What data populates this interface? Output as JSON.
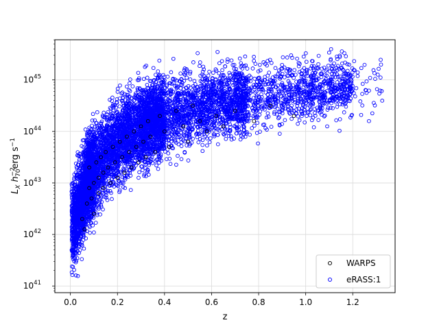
{
  "chart_data": {
    "type": "scatter",
    "title": "",
    "xlabel": "z",
    "ylabel_parts": {
      "main": "L",
      "sub1": "X",
      "h": "h",
      "hsub": "70",
      "hsup": "−2",
      "unit": "erg s",
      "unitsup": "−1"
    },
    "x_ticks": [
      "0.0",
      "0.2",
      "0.4",
      "0.6",
      "0.8",
      "1.0",
      "1.2"
    ],
    "x_tick_values": [
      0.0,
      0.2,
      0.4,
      0.6,
      0.8,
      1.0,
      1.2
    ],
    "y_ticks": [
      {
        "value": 41,
        "base": "10",
        "exp": "41"
      },
      {
        "value": 42,
        "base": "10",
        "exp": "42"
      },
      {
        "value": 43,
        "base": "10",
        "exp": "43"
      },
      {
        "value": 44,
        "base": "10",
        "exp": "44"
      },
      {
        "value": 45,
        "base": "10",
        "exp": "45"
      }
    ],
    "xlim": [
      -0.066,
      1.38
    ],
    "ylim_log10": [
      40.87,
      45.78
    ],
    "yscale": "log",
    "grid": true,
    "legend_position": "lower right",
    "series": [
      {
        "name": "WARPS",
        "marker": "open-circle",
        "color": "#000000",
        "points": [
          [
            0.05,
            42.3
          ],
          [
            0.06,
            42.1
          ],
          [
            0.07,
            42.6
          ],
          [
            0.08,
            42.9
          ],
          [
            0.08,
            43.3
          ],
          [
            0.09,
            42.7
          ],
          [
            0.1,
            43.0
          ],
          [
            0.1,
            42.4
          ],
          [
            0.11,
            43.4
          ],
          [
            0.12,
            43.1
          ],
          [
            0.12,
            42.8
          ],
          [
            0.13,
            43.5
          ],
          [
            0.14,
            43.2
          ],
          [
            0.14,
            42.9
          ],
          [
            0.15,
            43.6
          ],
          [
            0.16,
            43.3
          ],
          [
            0.17,
            43.0
          ],
          [
            0.18,
            43.7
          ],
          [
            0.19,
            43.4
          ],
          [
            0.2,
            43.1
          ],
          [
            0.21,
            43.8
          ],
          [
            0.22,
            43.5
          ],
          [
            0.23,
            43.2
          ],
          [
            0.24,
            43.9
          ],
          [
            0.25,
            43.6
          ],
          [
            0.26,
            43.3
          ],
          [
            0.27,
            44.0
          ],
          [
            0.28,
            43.7
          ],
          [
            0.29,
            43.4
          ],
          [
            0.3,
            44.1
          ],
          [
            0.31,
            43.8
          ],
          [
            0.32,
            43.5
          ],
          [
            0.33,
            44.2
          ],
          [
            0.34,
            43.9
          ],
          [
            0.36,
            43.6
          ],
          [
            0.38,
            44.3
          ],
          [
            0.4,
            44.0
          ],
          [
            0.42,
            43.7
          ],
          [
            0.45,
            44.4
          ],
          [
            0.48,
            44.1
          ],
          [
            0.5,
            43.8
          ],
          [
            0.52,
            44.5
          ],
          [
            0.55,
            44.2
          ],
          [
            0.58,
            44.0
          ],
          [
            0.62,
            44.3
          ],
          [
            0.65,
            44.1
          ],
          [
            0.7,
            44.4
          ],
          [
            0.78,
            44.2
          ],
          [
            0.85,
            44.5
          ],
          [
            0.95,
            44.3
          ]
        ]
      },
      {
        "name": "eRASS:1",
        "marker": "open-circle",
        "color": "#0000ff"
      }
    ]
  }
}
